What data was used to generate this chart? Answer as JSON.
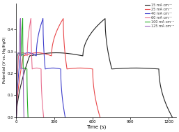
{
  "title": "",
  "xlabel": "Time (s)",
  "ylabel": "Potential (V vs. Hg/HgO)",
  "xlim": [
    0,
    1260
  ],
  "ylim": [
    0.0,
    0.52
  ],
  "yticks": [
    0.0,
    0.1,
    0.2,
    0.3,
    0.4
  ],
  "xticks": [
    0,
    300,
    600,
    900,
    1200
  ],
  "background_color": "#ffffff",
  "curves": [
    {
      "label": "15 mA cm⁻²",
      "color": "#222222",
      "current": 15,
      "charge_time": 700,
      "discharge_time": 530
    },
    {
      "label": "25 mA cm⁻²",
      "color": "#e8474a",
      "current": 25,
      "charge_time": 370,
      "discharge_time": 290
    },
    {
      "label": "40 mA cm⁻²",
      "color": "#4040cc",
      "current": 40,
      "charge_time": 210,
      "discharge_time": 175
    },
    {
      "label": "60 mA cm⁻²",
      "color": "#e87090",
      "current": 60,
      "charge_time": 115,
      "discharge_time": 100
    },
    {
      "label": "100 mA cm⁻²",
      "color": "#22aa22",
      "current": 100,
      "charge_time": 50,
      "discharge_time": 42
    },
    {
      "label": "125 mA cm⁻²",
      "color": "#9966bb",
      "current": 125,
      "charge_time": 32,
      "discharge_time": 28
    }
  ],
  "v_min": 0.0,
  "v_max": 0.45,
  "v_plateau_charge": 0.28,
  "v_plateau_discharge": 0.22
}
